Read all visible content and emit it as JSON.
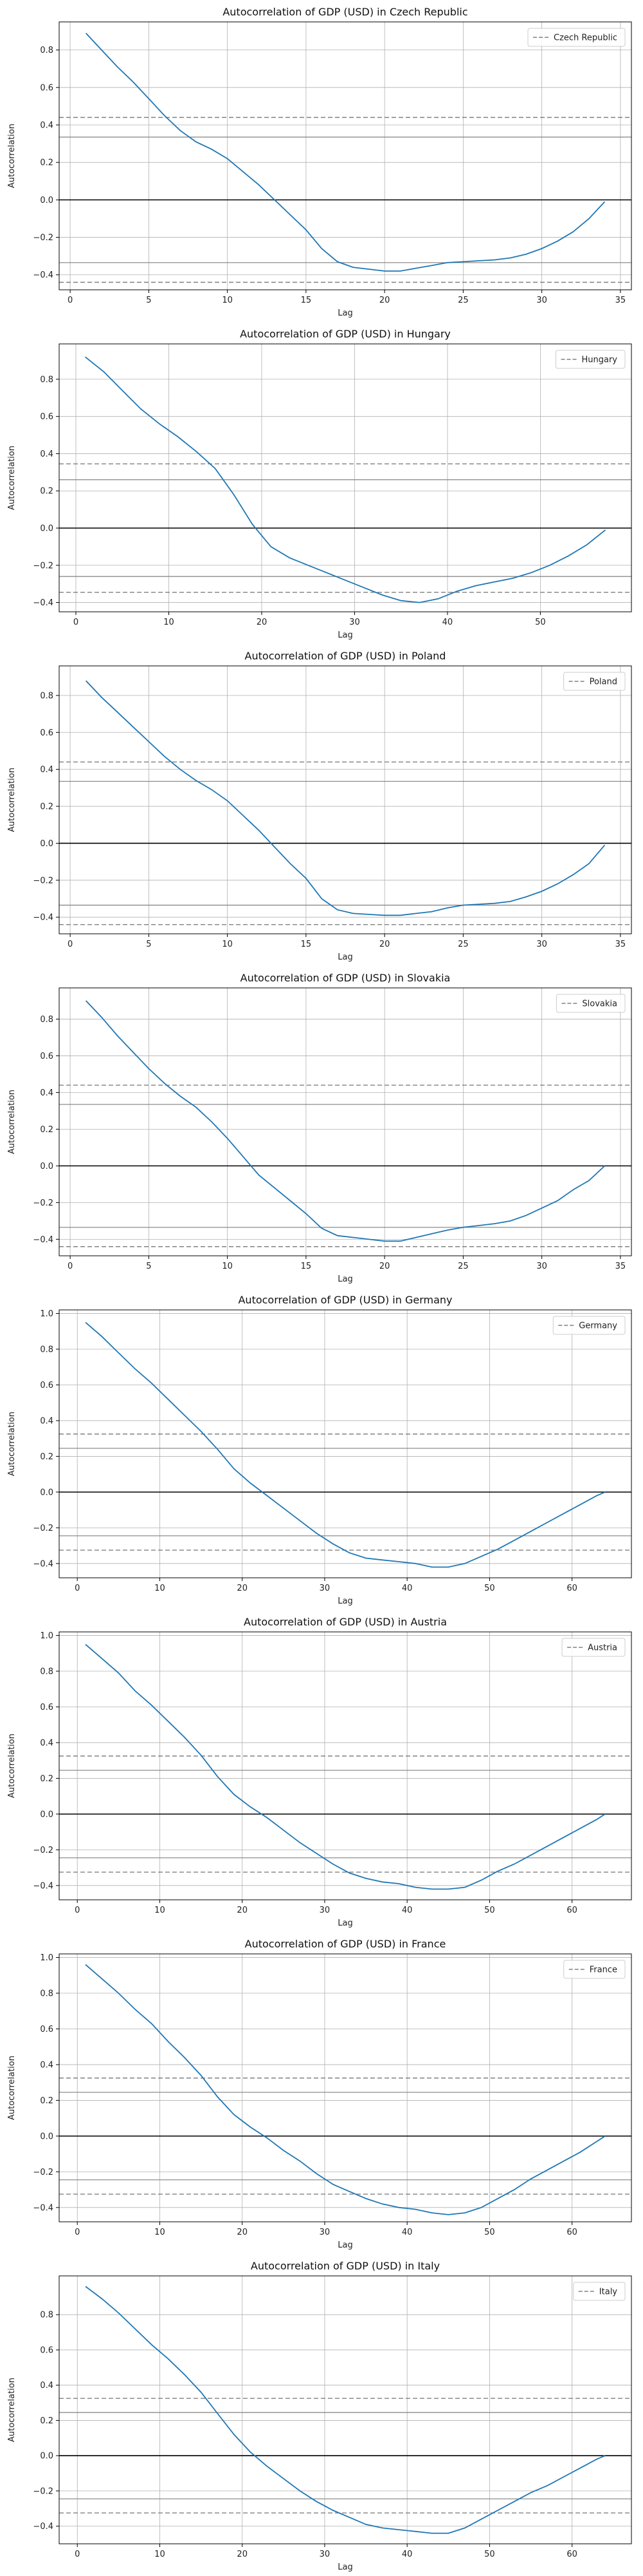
{
  "chart_data": [
    {
      "type": "line",
      "title": "Autocorrelation of GDP (USD) in Czech Republic",
      "xlabel": "Lag",
      "ylabel": "Autocorrelation",
      "legend": {
        "label": "Czech Republic",
        "placement": "top-right"
      },
      "xlim": [
        -0.7,
        35.7
      ],
      "ylim": [
        -0.48,
        0.95
      ],
      "xticks": [
        0,
        5,
        10,
        15,
        20,
        25,
        30,
        35
      ],
      "yticks": [
        -0.4,
        -0.2,
        0.0,
        0.2,
        0.4,
        0.6,
        0.8
      ],
      "yticklabels": [
        "−0.4",
        "−0.2",
        "0.0",
        "0.2",
        "0.4",
        "0.6",
        "0.8"
      ],
      "conf_99": 0.44,
      "conf_95": 0.335,
      "grid": true,
      "series": [
        {
          "x": [
            1,
            2,
            3,
            4,
            5,
            6,
            7,
            8,
            9,
            10,
            11,
            12,
            13,
            14,
            15,
            16,
            17,
            18,
            19,
            20,
            21,
            22,
            23,
            24,
            25,
            26,
            27,
            28,
            29,
            30,
            31,
            32,
            33,
            34
          ],
          "values": [
            0.89,
            0.8,
            0.71,
            0.63,
            0.54,
            0.45,
            0.37,
            0.31,
            0.27,
            0.22,
            0.15,
            0.08,
            0.0,
            -0.08,
            -0.16,
            -0.26,
            -0.33,
            -0.36,
            -0.37,
            -0.38,
            -0.38,
            -0.365,
            -0.35,
            -0.335,
            -0.33,
            -0.325,
            -0.32,
            -0.31,
            -0.29,
            -0.26,
            -0.22,
            -0.17,
            -0.1,
            -0.01
          ]
        }
      ]
    },
    {
      "type": "line",
      "title": "Autocorrelation of GDP (USD) in Hungary",
      "xlabel": "Lag",
      "ylabel": "Autocorrelation",
      "legend": {
        "label": "Hungary",
        "placement": "top-right"
      },
      "xlim": [
        -1.8,
        59.8
      ],
      "ylim": [
        -0.45,
        0.99
      ],
      "xticks": [
        0,
        10,
        20,
        30,
        40,
        50
      ],
      "yticks": [
        -0.4,
        -0.2,
        0.0,
        0.2,
        0.4,
        0.6,
        0.8
      ],
      "yticklabels": [
        "−0.4",
        "−0.2",
        "0.0",
        "0.2",
        "0.4",
        "0.6",
        "0.8"
      ],
      "conf_99": 0.345,
      "conf_95": 0.26,
      "grid": true,
      "series": [
        {
          "x": [
            1,
            3,
            5,
            7,
            9,
            11,
            13,
            15,
            17,
            19,
            21,
            23,
            25,
            27,
            29,
            31,
            33,
            35,
            37,
            39,
            41,
            43,
            45,
            47,
            49,
            51,
            53,
            55,
            57
          ],
          "values": [
            0.92,
            0.84,
            0.74,
            0.64,
            0.56,
            0.49,
            0.41,
            0.32,
            0.18,
            0.02,
            -0.1,
            -0.16,
            -0.2,
            -0.24,
            -0.28,
            -0.32,
            -0.36,
            -0.39,
            -0.4,
            -0.38,
            -0.34,
            -0.31,
            -0.29,
            -0.27,
            -0.24,
            -0.2,
            -0.15,
            -0.09,
            -0.01
          ]
        }
      ]
    },
    {
      "type": "line",
      "title": "Autocorrelation of GDP (USD) in Poland",
      "xlabel": "Lag",
      "ylabel": "Autocorrelation",
      "legend": {
        "label": "Poland",
        "placement": "top-right"
      },
      "xlim": [
        -0.7,
        35.7
      ],
      "ylim": [
        -0.49,
        0.96
      ],
      "xticks": [
        0,
        5,
        10,
        15,
        20,
        25,
        30,
        35
      ],
      "yticks": [
        -0.4,
        -0.2,
        0.0,
        0.2,
        0.4,
        0.6,
        0.8
      ],
      "yticklabels": [
        "−0.4",
        "−0.2",
        "0.0",
        "0.2",
        "0.4",
        "0.6",
        "0.8"
      ],
      "conf_99": 0.44,
      "conf_95": 0.335,
      "grid": true,
      "series": [
        {
          "x": [
            1,
            2,
            3,
            4,
            5,
            6,
            7,
            8,
            9,
            10,
            11,
            12,
            13,
            14,
            15,
            16,
            17,
            18,
            19,
            20,
            21,
            22,
            23,
            24,
            25,
            26,
            27,
            28,
            29,
            30,
            31,
            32,
            33,
            34
          ],
          "values": [
            0.88,
            0.79,
            0.71,
            0.63,
            0.55,
            0.47,
            0.4,
            0.34,
            0.29,
            0.23,
            0.15,
            0.07,
            -0.02,
            -0.11,
            -0.19,
            -0.3,
            -0.36,
            -0.38,
            -0.385,
            -0.39,
            -0.39,
            -0.38,
            -0.37,
            -0.35,
            -0.335,
            -0.33,
            -0.325,
            -0.315,
            -0.29,
            -0.26,
            -0.22,
            -0.17,
            -0.11,
            -0.01
          ]
        }
      ]
    },
    {
      "type": "line",
      "title": "Autocorrelation of GDP (USD) in Slovakia",
      "xlabel": "Lag",
      "ylabel": "Autocorrelation",
      "legend": {
        "label": "Slovakia",
        "placement": "top-right"
      },
      "xlim": [
        -0.7,
        35.7
      ],
      "ylim": [
        -0.49,
        0.97
      ],
      "xticks": [
        0,
        5,
        10,
        15,
        20,
        25,
        30,
        35
      ],
      "yticks": [
        -0.4,
        -0.2,
        0.0,
        0.2,
        0.4,
        0.6,
        0.8
      ],
      "yticklabels": [
        "−0.4",
        "−0.2",
        "0.0",
        "0.2",
        "0.4",
        "0.6",
        "0.8"
      ],
      "conf_99": 0.44,
      "conf_95": 0.335,
      "grid": true,
      "series": [
        {
          "x": [
            1,
            2,
            3,
            4,
            5,
            6,
            7,
            8,
            9,
            10,
            11,
            12,
            13,
            14,
            15,
            16,
            17,
            18,
            19,
            20,
            21,
            22,
            23,
            24,
            25,
            26,
            27,
            28,
            29,
            30,
            31,
            32,
            33,
            34
          ],
          "values": [
            0.9,
            0.81,
            0.71,
            0.62,
            0.53,
            0.45,
            0.38,
            0.32,
            0.24,
            0.15,
            0.05,
            -0.05,
            -0.12,
            -0.19,
            -0.26,
            -0.34,
            -0.38,
            -0.39,
            -0.4,
            -0.41,
            -0.41,
            -0.39,
            -0.37,
            -0.35,
            -0.335,
            -0.325,
            -0.315,
            -0.3,
            -0.27,
            -0.23,
            -0.19,
            -0.13,
            -0.08,
            0.0
          ]
        }
      ]
    },
    {
      "type": "line",
      "title": "Autocorrelation of GDP (USD) in Germany",
      "xlabel": "Lag",
      "ylabel": "Autocorrelation",
      "legend": {
        "label": "Germany",
        "placement": "top-right"
      },
      "xlim": [
        -2.2,
        67.2
      ],
      "ylim": [
        -0.48,
        1.02
      ],
      "xticks": [
        0,
        10,
        20,
        30,
        40,
        50,
        60
      ],
      "yticks": [
        -0.4,
        -0.2,
        0.0,
        0.2,
        0.4,
        0.6,
        0.8,
        1.0
      ],
      "yticklabels": [
        "−0.4",
        "−0.2",
        "0.0",
        "0.2",
        "0.4",
        "0.6",
        "0.8",
        "1.0"
      ],
      "conf_99": 0.325,
      "conf_95": 0.245,
      "grid": true,
      "series": [
        {
          "x": [
            1,
            3,
            5,
            7,
            9,
            11,
            13,
            15,
            17,
            19,
            21,
            23,
            25,
            27,
            29,
            31,
            33,
            35,
            37,
            39,
            41,
            43,
            45,
            47,
            49,
            51,
            53,
            55,
            57,
            59,
            61,
            63,
            64
          ],
          "values": [
            0.95,
            0.87,
            0.78,
            0.69,
            0.61,
            0.52,
            0.43,
            0.34,
            0.24,
            0.13,
            0.05,
            -0.02,
            -0.09,
            -0.16,
            -0.23,
            -0.29,
            -0.34,
            -0.37,
            -0.38,
            -0.39,
            -0.4,
            -0.42,
            -0.42,
            -0.4,
            -0.36,
            -0.32,
            -0.27,
            -0.22,
            -0.17,
            -0.12,
            -0.07,
            -0.02,
            0.0
          ]
        }
      ]
    },
    {
      "type": "line",
      "title": "Autocorrelation of GDP (USD) in Austria",
      "xlabel": "Lag",
      "ylabel": "Autocorrelation",
      "legend": {
        "label": "Austria",
        "placement": "top-right"
      },
      "xlim": [
        -2.2,
        67.2
      ],
      "ylim": [
        -0.48,
        1.02
      ],
      "xticks": [
        0,
        10,
        20,
        30,
        40,
        50,
        60
      ],
      "yticks": [
        -0.4,
        -0.2,
        0.0,
        0.2,
        0.4,
        0.6,
        0.8,
        1.0
      ],
      "yticklabels": [
        "−0.4",
        "−0.2",
        "0.0",
        "0.2",
        "0.4",
        "0.6",
        "0.8",
        "1.0"
      ],
      "conf_99": 0.325,
      "conf_95": 0.245,
      "grid": true,
      "series": [
        {
          "x": [
            1,
            3,
            5,
            7,
            9,
            11,
            13,
            15,
            17,
            19,
            21,
            23,
            25,
            27,
            29,
            31,
            33,
            35,
            37,
            39,
            41,
            43,
            45,
            47,
            49,
            51,
            53,
            55,
            57,
            59,
            61,
            63,
            64
          ],
          "values": [
            0.95,
            0.87,
            0.79,
            0.69,
            0.61,
            0.52,
            0.43,
            0.33,
            0.21,
            0.11,
            0.04,
            -0.02,
            -0.09,
            -0.16,
            -0.22,
            -0.28,
            -0.33,
            -0.36,
            -0.38,
            -0.39,
            -0.41,
            -0.42,
            -0.42,
            -0.41,
            -0.37,
            -0.32,
            -0.28,
            -0.23,
            -0.18,
            -0.13,
            -0.08,
            -0.03,
            0.0
          ]
        }
      ]
    },
    {
      "type": "line",
      "title": "Autocorrelation of GDP (USD) in France",
      "xlabel": "Lag",
      "ylabel": "Autocorrelation",
      "legend": {
        "label": "France",
        "placement": "top-right"
      },
      "xlim": [
        -2.2,
        67.2
      ],
      "ylim": [
        -0.48,
        1.02
      ],
      "xticks": [
        0,
        10,
        20,
        30,
        40,
        50,
        60
      ],
      "yticks": [
        -0.4,
        -0.2,
        0.0,
        0.2,
        0.4,
        0.6,
        0.8,
        1.0
      ],
      "yticklabels": [
        "−0.4",
        "−0.2",
        "0.0",
        "0.2",
        "0.4",
        "0.6",
        "0.8",
        "1.0"
      ],
      "conf_99": 0.325,
      "conf_95": 0.245,
      "grid": true,
      "series": [
        {
          "x": [
            1,
            3,
            5,
            7,
            9,
            11,
            13,
            15,
            17,
            19,
            21,
            23,
            25,
            27,
            29,
            31,
            33,
            35,
            37,
            39,
            41,
            43,
            45,
            47,
            49,
            51,
            53,
            55,
            57,
            59,
            61,
            63,
            64
          ],
          "values": [
            0.96,
            0.88,
            0.8,
            0.71,
            0.63,
            0.53,
            0.44,
            0.34,
            0.22,
            0.12,
            0.05,
            -0.01,
            -0.08,
            -0.14,
            -0.21,
            -0.27,
            -0.31,
            -0.35,
            -0.38,
            -0.4,
            -0.41,
            -0.43,
            -0.44,
            -0.43,
            -0.4,
            -0.35,
            -0.3,
            -0.24,
            -0.19,
            -0.14,
            -0.09,
            -0.03,
            0.0
          ]
        }
      ]
    },
    {
      "type": "line",
      "title": "Autocorrelation of GDP (USD) in Italy",
      "xlabel": "Lag",
      "ylabel": "Autocorrelation",
      "legend": {
        "label": "Italy",
        "placement": "top-right"
      },
      "xlim": [
        -2.2,
        67.2
      ],
      "ylim": [
        -0.5,
        1.02
      ],
      "xticks": [
        0,
        10,
        20,
        30,
        40,
        50,
        60
      ],
      "yticks": [
        -0.4,
        -0.2,
        0.0,
        0.2,
        0.4,
        0.6,
        0.8
      ],
      "yticklabels": [
        "−0.4",
        "−0.2",
        "0.0",
        "0.2",
        "0.4",
        "0.6",
        "0.8"
      ],
      "conf_99": 0.325,
      "conf_95": 0.245,
      "grid": true,
      "series": [
        {
          "x": [
            1,
            3,
            5,
            7,
            9,
            11,
            13,
            15,
            17,
            19,
            21,
            23,
            25,
            27,
            29,
            31,
            33,
            35,
            37,
            39,
            41,
            43,
            45,
            47,
            49,
            51,
            53,
            55,
            57,
            59,
            61,
            63,
            64
          ],
          "values": [
            0.96,
            0.89,
            0.81,
            0.72,
            0.63,
            0.55,
            0.46,
            0.36,
            0.24,
            0.12,
            0.02,
            -0.06,
            -0.13,
            -0.2,
            -0.26,
            -0.31,
            -0.35,
            -0.39,
            -0.41,
            -0.42,
            -0.43,
            -0.44,
            -0.44,
            -0.41,
            -0.36,
            -0.31,
            -0.26,
            -0.21,
            -0.17,
            -0.12,
            -0.07,
            -0.02,
            0.0
          ]
        }
      ]
    }
  ],
  "colors": {
    "line": "#1f77b4",
    "grid": "#b0b0b0",
    "confidence": "#808080",
    "zero_line": "#000000"
  }
}
